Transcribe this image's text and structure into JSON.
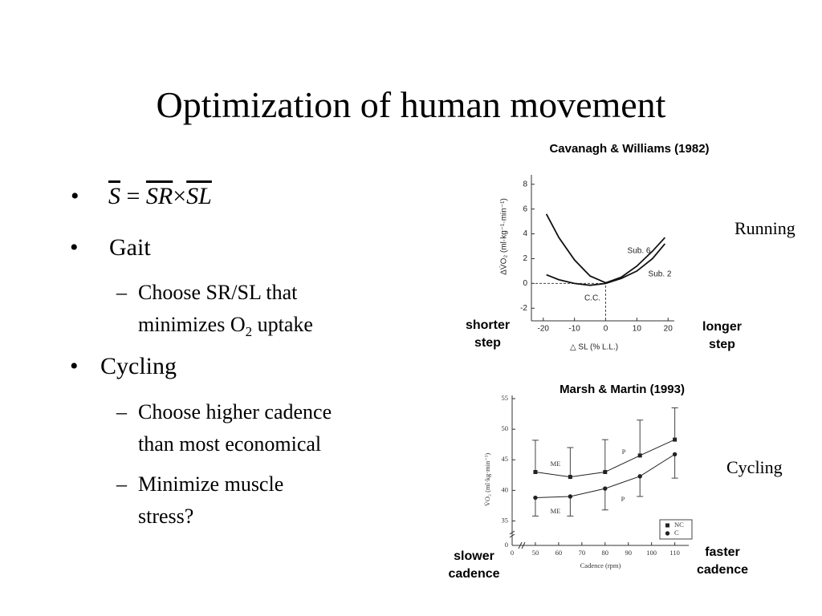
{
  "title": "Optimization of human movement",
  "formula": [
    "S",
    "=",
    "SR",
    "×",
    "SL"
  ],
  "bullets": [
    {
      "text": "Gait",
      "items": [
        {
          "lines": [
            "Choose SR/SL that",
            [
              "minimizes O",
              "2",
              " uptake"
            ]
          ]
        }
      ]
    },
    {
      "text": "Cycling",
      "items": [
        {
          "lines": [
            "Choose higher cadence",
            "than most economical"
          ]
        },
        {
          "lines": [
            "Minimize muscle",
            "stress?"
          ]
        }
      ]
    }
  ],
  "chart_data": [
    {
      "type": "line",
      "title": "Cavanagh & Williams (1982)",
      "x_label": "△ SL (% L.L.)",
      "y_label": "ΔV̇O₂ (ml·kg⁻¹·min⁻¹)",
      "side_label": "Running",
      "left_label": "shorter step",
      "right_label": "longer step",
      "annotations": [
        "C.C."
      ],
      "x": [
        -19,
        -15,
        -10,
        -5,
        0,
        5,
        10,
        15,
        19
      ],
      "series": [
        {
          "name": "Sub. 6",
          "color": "#111111",
          "values": [
            5.6,
            3.7,
            1.9,
            0.6,
            0.05,
            0.5,
            1.4,
            2.6,
            3.7
          ]
        },
        {
          "name": "Sub. 2",
          "color": "#111111",
          "values": [
            0.7,
            0.3,
            0,
            -0.15,
            0,
            0.4,
            1.0,
            2.0,
            3.2
          ]
        }
      ],
      "xlim": [
        -22,
        22
      ],
      "xticks": [
        -20,
        -10,
        0,
        10,
        20
      ],
      "ylim": [
        -2.5,
        8.5
      ],
      "yticks": [
        -2,
        0,
        2,
        4,
        6,
        8
      ]
    },
    {
      "type": "errorbar",
      "title": "Marsh & Martin (1993)",
      "x_label": "Cadence (rpm)",
      "y_label": "V̇O₂ (ml·kg·min⁻¹)",
      "side_label": "Cycling",
      "left_label": "slower cadence",
      "right_label": "faster cadence",
      "annotations": [
        "ME",
        "P",
        "ME",
        "P"
      ],
      "x": [
        50,
        65,
        80,
        95,
        110
      ],
      "series": [
        {
          "name": "NC",
          "color": "#222222",
          "marker": "square",
          "error_direction": "up",
          "values": [
            43,
            42.2,
            43,
            45.7,
            48.3
          ],
          "errors": [
            5.2,
            4.8,
            5.3,
            5.8,
            5.2
          ]
        },
        {
          "name": "C",
          "color": "#222222",
          "marker": "circle",
          "error_direction": "down",
          "values": [
            38.8,
            39,
            40.3,
            42.3,
            45.9
          ],
          "errors": [
            3,
            3.2,
            3.5,
            3.3,
            3.9
          ]
        }
      ],
      "xlim": [
        40,
        116
      ],
      "xticks": [
        50,
        60,
        70,
        80,
        90,
        100,
        110
      ],
      "xbreak": 0,
      "ylim": [
        31,
        55
      ],
      "yticks": [
        35,
        40,
        45,
        50,
        55
      ],
      "ybreak": 0
    }
  ]
}
